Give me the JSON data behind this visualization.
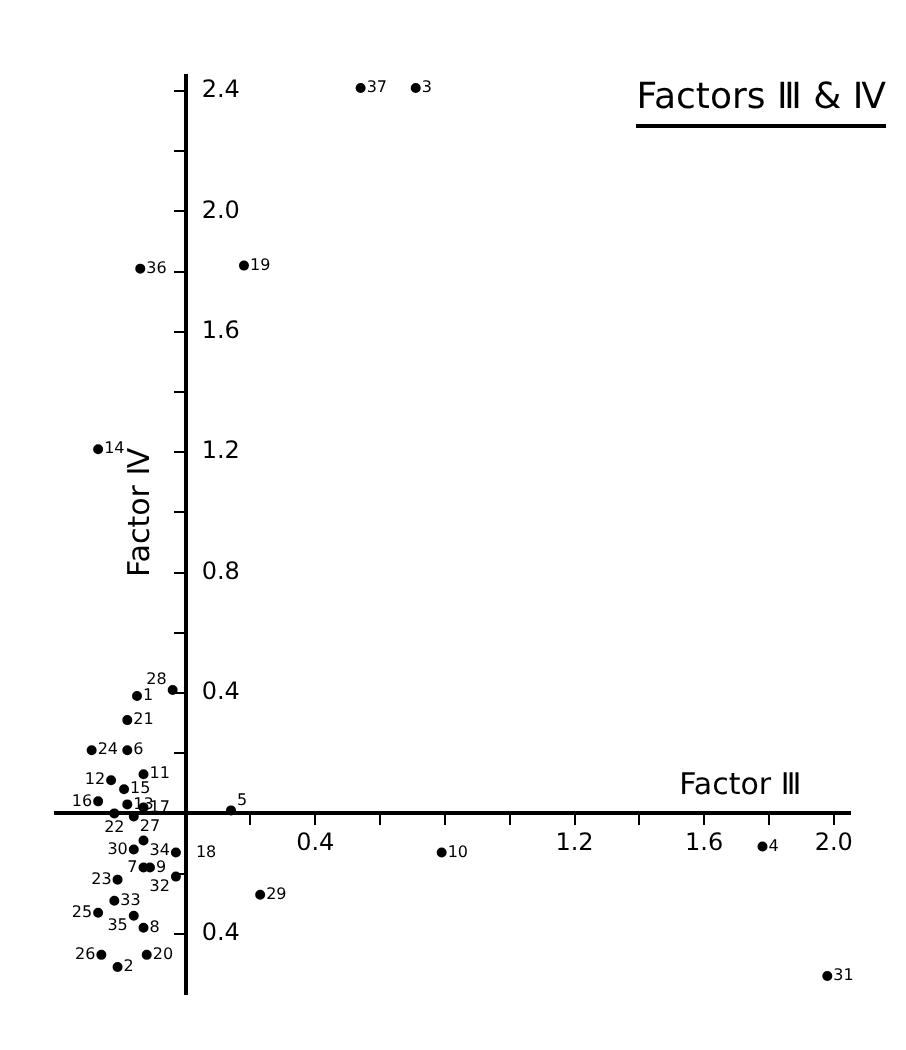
{
  "chart_data": {
    "type": "scatter",
    "title": "Factors Ⅲ & Ⅳ",
    "xlabel": "Factor Ⅲ",
    "ylabel": "Factor Ⅳ",
    "color": "#000000",
    "marker": "circle",
    "grid": false,
    "x": [
      0.54,
      0.71,
      -0.14,
      0.18,
      -0.27,
      -0.15,
      -0.04,
      -0.18,
      -0.29,
      -0.18,
      -0.23,
      -0.13,
      -0.19,
      -0.27,
      -0.18,
      -0.13,
      -0.22,
      -0.16,
      -0.16,
      -0.13,
      -0.03,
      -0.13,
      -0.11,
      -0.21,
      -0.03,
      -0.22,
      -0.27,
      -0.16,
      -0.13,
      -0.26,
      -0.21,
      -0.12,
      0.23,
      0.14,
      0.79,
      1.78,
      1.98
    ],
    "values": [
      2.41,
      2.41,
      1.81,
      1.82,
      1.21,
      0.39,
      0.41,
      0.31,
      0.21,
      0.21,
      0.11,
      0.13,
      0.08,
      0.04,
      0.03,
      0.02,
      0.0,
      -0.01,
      -0.12,
      -0.09,
      -0.13,
      -0.18,
      -0.18,
      -0.22,
      -0.21,
      -0.29,
      -0.33,
      -0.34,
      -0.38,
      -0.47,
      -0.51,
      -0.47,
      -0.27,
      0.01,
      -0.13,
      -0.11,
      -0.54
    ],
    "annotations": [
      {
        "text": "37",
        "x": 0.54,
        "y": 2.41
      },
      {
        "text": "3",
        "x": 0.71,
        "y": 2.41
      },
      {
        "text": "36",
        "x": -0.14,
        "y": 1.81
      },
      {
        "text": "19",
        "x": 0.18,
        "y": 1.82
      },
      {
        "text": "14",
        "x": -0.27,
        "y": 1.21
      },
      {
        "text": "1",
        "x": -0.15,
        "y": 0.39
      },
      {
        "text": "28",
        "x": -0.04,
        "y": 0.41
      },
      {
        "text": "21",
        "x": -0.18,
        "y": 0.31
      },
      {
        "text": "24",
        "x": -0.29,
        "y": 0.21
      },
      {
        "text": "6",
        "x": -0.18,
        "y": 0.21
      },
      {
        "text": "12",
        "x": -0.23,
        "y": 0.11
      },
      {
        "text": "11",
        "x": -0.13,
        "y": 0.13
      },
      {
        "text": "15",
        "x": -0.19,
        "y": 0.08
      },
      {
        "text": "16",
        "x": -0.27,
        "y": 0.04
      },
      {
        "text": "13",
        "x": -0.18,
        "y": 0.03
      },
      {
        "text": "17",
        "x": -0.13,
        "y": 0.02
      },
      {
        "text": "22",
        "x": -0.22,
        "y": 0.0
      },
      {
        "text": "27",
        "x": -0.16,
        "y": -0.01
      },
      {
        "text": "30",
        "x": -0.16,
        "y": -0.12
      },
      {
        "text": "34",
        "x": -0.13,
        "y": -0.09
      },
      {
        "text": "18",
        "x": -0.03,
        "y": -0.13
      },
      {
        "text": "7",
        "x": -0.13,
        "y": -0.18
      },
      {
        "text": "9",
        "x": -0.11,
        "y": -0.18
      },
      {
        "text": "23",
        "x": -0.21,
        "y": -0.22
      },
      {
        "text": "32",
        "x": -0.03,
        "y": -0.21
      },
      {
        "text": "33",
        "x": -0.22,
        "y": -0.29
      },
      {
        "text": "25",
        "x": -0.27,
        "y": -0.33
      },
      {
        "text": "35",
        "x": -0.16,
        "y": -0.34
      },
      {
        "text": "8",
        "x": -0.13,
        "y": -0.38
      },
      {
        "text": "26",
        "x": -0.26,
        "y": -0.47
      },
      {
        "text": "2",
        "x": -0.21,
        "y": -0.51
      },
      {
        "text": "20",
        "x": -0.12,
        "y": -0.47
      },
      {
        "text": "29",
        "x": 0.23,
        "y": -0.27
      },
      {
        "text": "5",
        "x": 0.14,
        "y": 0.01
      },
      {
        "text": "10",
        "x": 0.79,
        "y": -0.13
      },
      {
        "text": "4",
        "x": 1.78,
        "y": -0.11
      },
      {
        "text": "31",
        "x": 1.98,
        "y": -0.54
      }
    ],
    "xlim": [
      -0.4,
      2.05
    ],
    "xticks": [
      {
        "value": 0.2,
        "label": null
      },
      0.4,
      {
        "value": 0.6,
        "label": null
      },
      {
        "value": 0.8,
        "label": null
      },
      {
        "value": 1.0,
        "label": null
      },
      1.2,
      {
        "value": 1.4,
        "label": null
      },
      1.6,
      {
        "value": 1.8,
        "label": null
      },
      {
        "value": 2.0,
        "label": "2.0"
      }
    ],
    "ylim": [
      -0.6,
      2.45
    ],
    "yticks": [
      {
        "value": -0.4,
        "label": "0.4"
      },
      {
        "value": -0.2,
        "label": null
      },
      {
        "value": 0.2,
        "label": null
      },
      0.4,
      {
        "value": 0.6,
        "label": null
      },
      0.8,
      {
        "value": 1.0,
        "label": null
      },
      1.2,
      {
        "value": 1.4,
        "label": null
      },
      1.6,
      {
        "value": 1.8,
        "label": null
      },
      {
        "value": 2.0,
        "label": "2.0"
      },
      {
        "value": 2.2,
        "label": null
      },
      2.4
    ]
  }
}
